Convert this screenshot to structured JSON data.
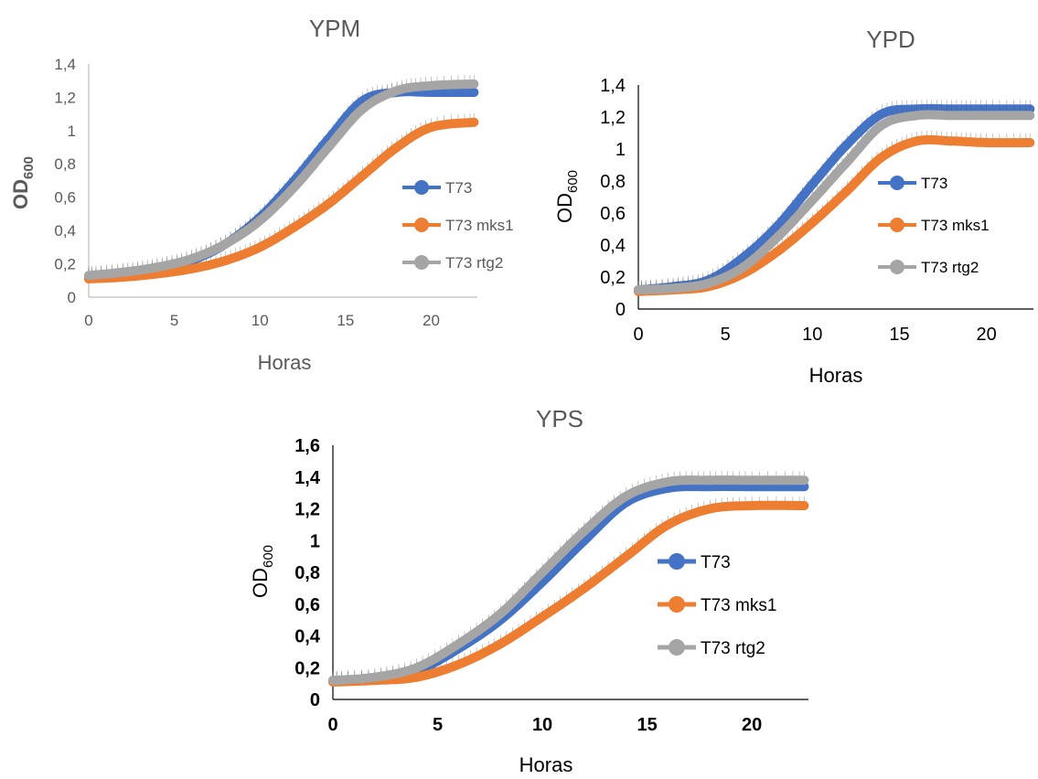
{
  "colors": {
    "T73": "#4472C4",
    "T73 mks1": "#ED7D31",
    "T73 rtg2": "#A5A5A5",
    "axis": "#bfbfbf",
    "axis_dark": "#000000"
  },
  "chart_data": [
    {
      "type": "line",
      "title": "YPM",
      "xlabel": "Horas",
      "ylabel_main": "OD",
      "ylabel_sub": "600",
      "xlim": [
        0,
        22.7
      ],
      "ylim": [
        0,
        1.4
      ],
      "xticks": [
        "0",
        "5",
        "10",
        "15",
        "20"
      ],
      "yticks": [
        "0",
        "0,2",
        "0,4",
        "0,6",
        "0,8",
        "1",
        "1,2",
        "1,4"
      ],
      "legend_position": "right",
      "series": [
        {
          "name": "T73",
          "x": [
            0,
            2,
            4,
            6,
            8,
            10,
            12,
            14,
            16,
            18,
            20,
            22.5
          ],
          "y": [
            0.12,
            0.14,
            0.17,
            0.22,
            0.32,
            0.48,
            0.7,
            0.95,
            1.18,
            1.23,
            1.23,
            1.23
          ]
        },
        {
          "name": "T73 mks1",
          "x": [
            0,
            2,
            4,
            6,
            8,
            10,
            12,
            14,
            16,
            18,
            20,
            22.5
          ],
          "y": [
            0.11,
            0.12,
            0.14,
            0.17,
            0.22,
            0.3,
            0.42,
            0.56,
            0.73,
            0.9,
            1.02,
            1.05
          ]
        },
        {
          "name": "T73 rtg2",
          "x": [
            0,
            2,
            4,
            6,
            8,
            10,
            12,
            14,
            16,
            18,
            20,
            22.5
          ],
          "y": [
            0.13,
            0.15,
            0.18,
            0.23,
            0.32,
            0.46,
            0.66,
            0.9,
            1.13,
            1.24,
            1.27,
            1.28
          ]
        }
      ]
    },
    {
      "type": "line",
      "title": "YPD",
      "xlabel": "Horas",
      "ylabel_main": "OD",
      "ylabel_sub": "600",
      "xlim": [
        0,
        22.7
      ],
      "ylim": [
        0,
        1.4
      ],
      "xticks": [
        "0",
        "5",
        "10",
        "15",
        "20"
      ],
      "yticks": [
        "0",
        "0,2",
        "0,4",
        "0,6",
        "0,8",
        "1",
        "1,2",
        "1,4"
      ],
      "legend_position": "right",
      "series": [
        {
          "name": "T73",
          "x": [
            0,
            2,
            4,
            6,
            8,
            10,
            12,
            14,
            16,
            18,
            20,
            22.5
          ],
          "y": [
            0.12,
            0.14,
            0.18,
            0.32,
            0.52,
            0.78,
            1.03,
            1.22,
            1.25,
            1.25,
            1.25,
            1.25
          ]
        },
        {
          "name": "T73 mks1",
          "x": [
            0,
            2,
            4,
            6,
            8,
            10,
            12,
            14,
            16,
            18,
            20,
            22.5
          ],
          "y": [
            0.11,
            0.12,
            0.14,
            0.22,
            0.36,
            0.54,
            0.74,
            0.95,
            1.05,
            1.05,
            1.04,
            1.04
          ]
        },
        {
          "name": "T73 rtg2",
          "x": [
            0,
            2,
            4,
            6,
            8,
            10,
            12,
            14,
            16,
            18,
            20,
            22.5
          ],
          "y": [
            0.12,
            0.13,
            0.16,
            0.26,
            0.45,
            0.68,
            0.92,
            1.15,
            1.21,
            1.21,
            1.21,
            1.21
          ]
        }
      ]
    },
    {
      "type": "line",
      "title": "YPS",
      "xlabel": "Horas",
      "ylabel_main": "OD",
      "ylabel_sub": "600",
      "xlim": [
        0,
        22.7
      ],
      "ylim": [
        0,
        1.6
      ],
      "xticks": [
        "0",
        "5",
        "10",
        "15",
        "20"
      ],
      "yticks": [
        "0",
        "0,2",
        "0,4",
        "0,6",
        "0,8",
        "1",
        "1,2",
        "1,4",
        "1,6"
      ],
      "legend_position": "right",
      "series": [
        {
          "name": "T73",
          "x": [
            0,
            2,
            4,
            6,
            8,
            10,
            12,
            14,
            16,
            18,
            20,
            22.5
          ],
          "y": [
            0.12,
            0.13,
            0.18,
            0.32,
            0.5,
            0.74,
            1.0,
            1.24,
            1.33,
            1.34,
            1.34,
            1.34
          ]
        },
        {
          "name": "T73 mks1",
          "x": [
            0,
            2,
            4,
            6,
            8,
            10,
            12,
            14,
            16,
            18,
            20,
            22.5
          ],
          "y": [
            0.11,
            0.12,
            0.14,
            0.22,
            0.35,
            0.52,
            0.7,
            0.9,
            1.1,
            1.2,
            1.22,
            1.22
          ]
        },
        {
          "name": "T73 rtg2",
          "x": [
            0,
            2,
            4,
            6,
            8,
            10,
            12,
            14,
            16,
            18,
            20,
            22.5
          ],
          "y": [
            0.12,
            0.14,
            0.2,
            0.35,
            0.54,
            0.8,
            1.06,
            1.28,
            1.37,
            1.38,
            1.38,
            1.38
          ]
        }
      ]
    }
  ]
}
